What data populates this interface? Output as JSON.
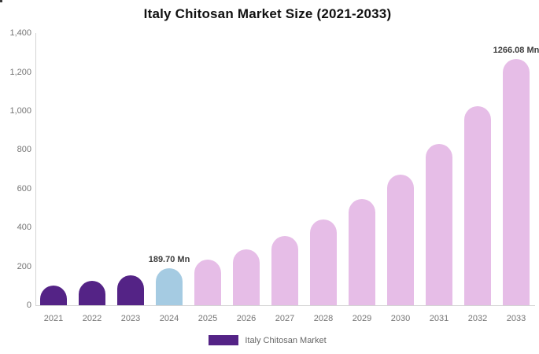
{
  "chart_data": {
    "type": "bar",
    "title": "Italy Chitosan Market Size (2021-2033)",
    "categories": [
      "2021",
      "2022",
      "2023",
      "2024",
      "2025",
      "2026",
      "2027",
      "2028",
      "2029",
      "2030",
      "2031",
      "2032",
      "2033"
    ],
    "values": [
      100.7,
      124.4,
      153.6,
      189.7,
      234.2,
      289.3,
      357.2,
      441.0,
      544.6,
      672.5,
      830.4,
      1025.4,
      1266.08
    ],
    "bar_colors": [
      "#542386",
      "#542386",
      "#542386",
      "#a5cbe2",
      "#e6bde7",
      "#e6bde7",
      "#e6bde7",
      "#e6bde7",
      "#e6bde7",
      "#e6bde7",
      "#e6bde7",
      "#e6bde7",
      "#e6bde7"
    ],
    "data_labels": [
      {
        "index": 3,
        "text": "189.70 Mn"
      },
      {
        "index": 12,
        "text": "1266.08 Mn"
      }
    ],
    "xlabel": "",
    "ylabel": "",
    "ylim": [
      0,
      1400
    ],
    "ytick_step": 200,
    "yticks": [
      "0",
      "200",
      "400",
      "600",
      "800",
      "1,000",
      "1,200",
      "1,400"
    ],
    "grid": false,
    "legend_position": "bottom",
    "legend": [
      {
        "label": "Italy Chitosan Market",
        "color": "#542386"
      }
    ]
  },
  "colors": {
    "background": "#ffffff",
    "title_text": "#111111",
    "axis_line": "#d4d4d4",
    "axis_text": "#757575",
    "data_label_text": "#3d3d3d",
    "series_dark_purple": "#542386",
    "series_light_blue": "#a5cbe2",
    "series_light_pink": "#e6bde7"
  }
}
